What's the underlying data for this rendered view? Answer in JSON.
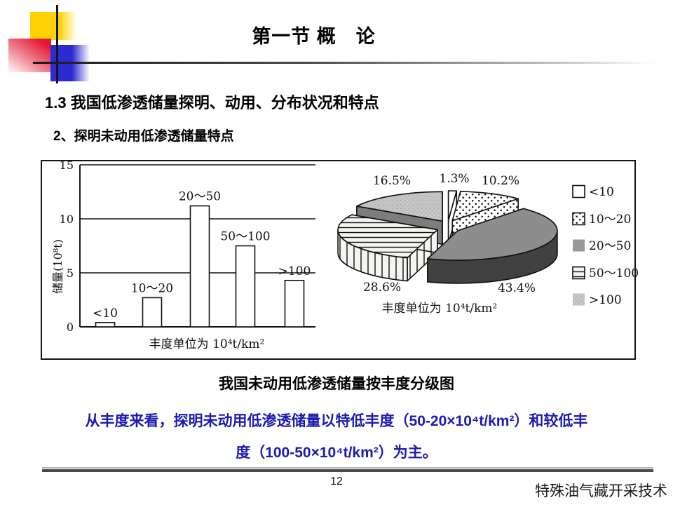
{
  "slide": {
    "title": "第一节 概　论",
    "heading": "1.3 我国低渗透储量探明、动用、分布状况和特点",
    "subheading": "2、探明未动用低渗透储量特点",
    "figure_caption": "我国未动用低渗透储量按丰度分级图",
    "body_line1": "从丰度来看，探明未动用低渗透储量以特低丰度（50-20×10⁴t/km²）和较低丰",
    "body_line2": "度（100-50×10⁴t/km²）为主。",
    "page_number": "12",
    "footer_text": "特殊油气藏开采技术"
  },
  "colors": {
    "body_text_blue": "#1b1bb4",
    "bar_fill": "#ffffff",
    "pie_dark_gray_top": "#8d8d8d",
    "pie_dark_gray_side": "#414141",
    "pie_light_gray_side": "#7d7d7d"
  },
  "chart_data": [
    {
      "type": "bar",
      "title": "",
      "categories": [
        "<10",
        "10～20",
        "20～50",
        "50～100",
        ">100"
      ],
      "values": [
        0.4,
        2.7,
        11.2,
        7.5,
        4.3
      ],
      "ylabel": "储量(10⁸t)",
      "xlabel": "丰度单位为 10⁴t/km²",
      "ylim": [
        0,
        15
      ],
      "yticks": [
        0,
        5,
        10,
        15
      ],
      "grid": true
    },
    {
      "type": "pie",
      "style": "3d-exploded",
      "start_angle_deg": -90,
      "direction": "clockwise",
      "categories": [
        "<10",
        "10～20",
        "20～50",
        "50～100",
        ">100"
      ],
      "values": [
        1.3,
        10.2,
        43.4,
        28.6,
        16.5
      ],
      "labels": [
        "1.3%",
        "10.2%",
        "43.4%",
        "28.6%",
        "16.5%"
      ],
      "unit_note": "丰度单位为 10⁴t/km²",
      "legend": [
        "<10",
        "10～20",
        "20～50",
        "50～100",
        ">100"
      ],
      "legend_position": "right"
    }
  ]
}
